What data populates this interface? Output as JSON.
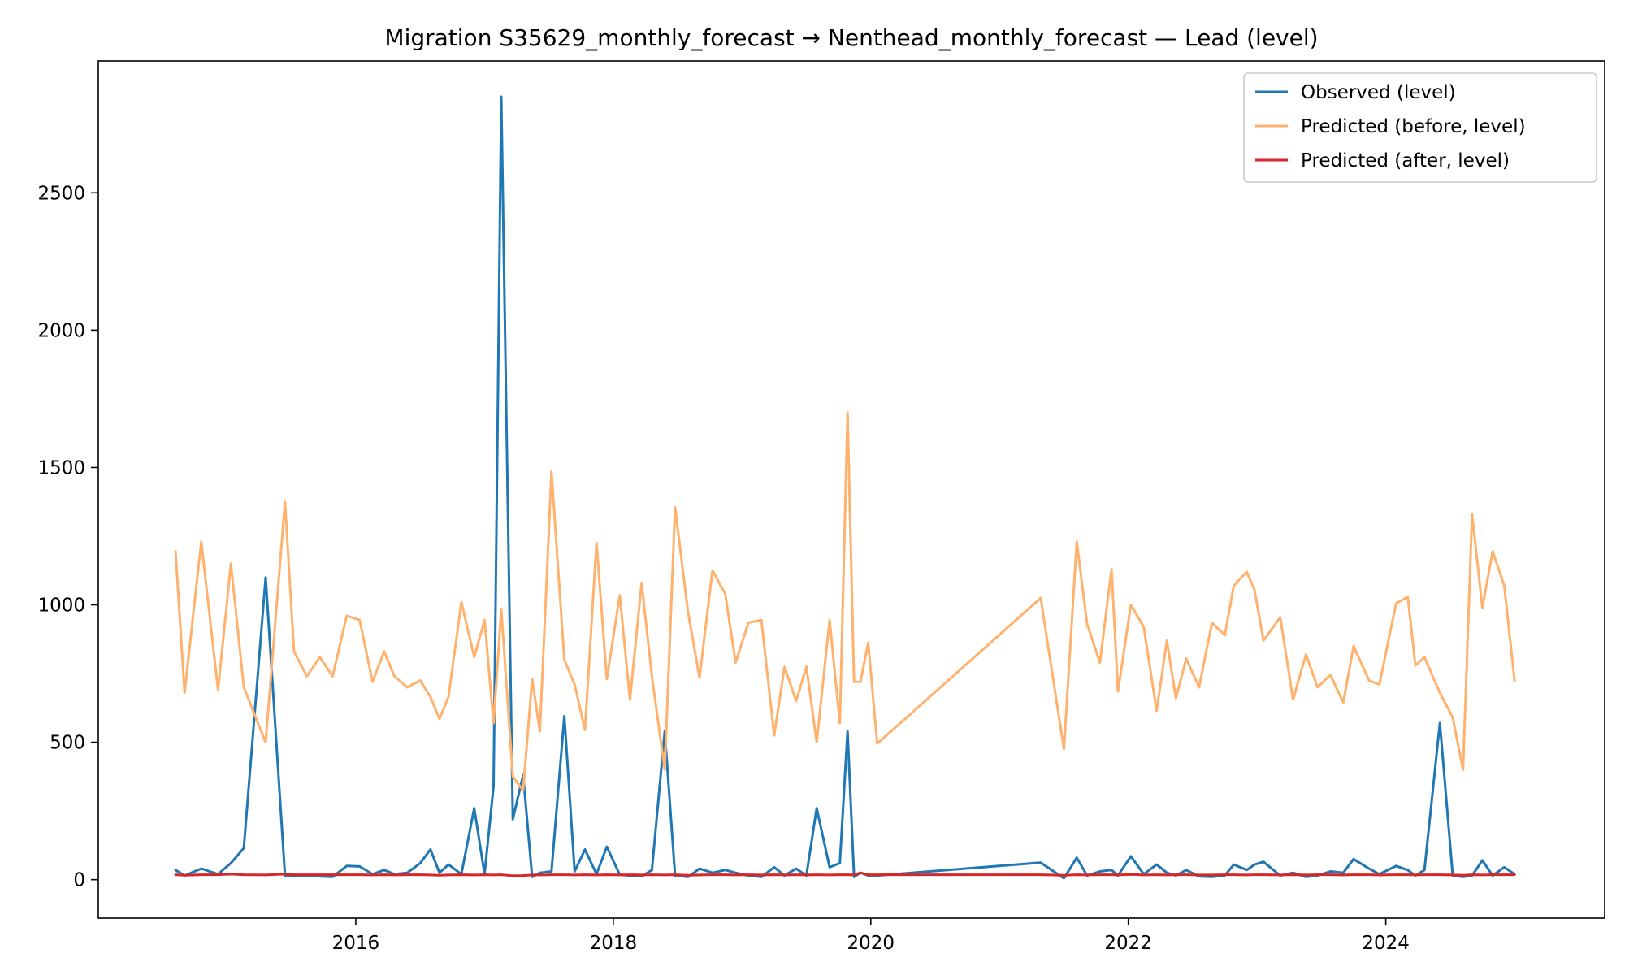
{
  "chart_data": {
    "type": "line",
    "title": "Migration S35629_monthly_forecast → Nenthead_monthly_forecast — Lead (level)",
    "xlabel": "",
    "ylabel": "",
    "x_ticks": [
      {
        "value": 2016,
        "label": "2016"
      },
      {
        "value": 2018,
        "label": "2018"
      },
      {
        "value": 2020,
        "label": "2020"
      },
      {
        "value": 2022,
        "label": "2022"
      },
      {
        "value": 2024,
        "label": "2024"
      }
    ],
    "y_ticks": [
      {
        "value": 0,
        "label": "0"
      },
      {
        "value": 500,
        "label": "500"
      },
      {
        "value": 1000,
        "label": "1000"
      },
      {
        "value": 1500,
        "label": "1500"
      },
      {
        "value": 2000,
        "label": "2000"
      },
      {
        "value": 2500,
        "label": "2500"
      }
    ],
    "xlim": [
      2014.0,
      2025.7
    ],
    "ylim": [
      -140,
      2980
    ],
    "grid": false,
    "legend_position": "top-right",
    "x": [
      2014.6,
      2014.67,
      2014.8,
      2014.93,
      2015.03,
      2015.13,
      2015.3,
      2015.45,
      2015.52,
      2015.62,
      2015.72,
      2015.82,
      2015.93,
      2016.03,
      2016.13,
      2016.22,
      2016.3,
      2016.4,
      2016.5,
      2016.58,
      2016.65,
      2016.72,
      2016.82,
      2016.92,
      2017.0,
      2017.07,
      2017.13,
      2017.22,
      2017.3,
      2017.37,
      2017.43,
      2017.52,
      2017.62,
      2017.7,
      2017.78,
      2017.87,
      2017.95,
      2018.05,
      2018.13,
      2018.22,
      2018.3,
      2018.4,
      2018.48,
      2018.58,
      2018.67,
      2018.77,
      2018.87,
      2018.95,
      2019.05,
      2019.15,
      2019.25,
      2019.33,
      2019.42,
      2019.5,
      2019.58,
      2019.68,
      2019.76,
      2019.82,
      2019.87,
      2019.92,
      2019.98,
      2020.05,
      2021.32,
      2021.5,
      2021.6,
      2021.68,
      2021.78,
      2021.87,
      2021.92,
      2022.02,
      2022.12,
      2022.22,
      2022.3,
      2022.37,
      2022.45,
      2022.55,
      2022.65,
      2022.75,
      2022.82,
      2022.92,
      2022.98,
      2023.05,
      2023.18,
      2023.28,
      2023.38,
      2023.47,
      2023.57,
      2023.67,
      2023.75,
      2023.87,
      2023.95,
      2024.08,
      2024.17,
      2024.23,
      2024.3,
      2024.42,
      2024.52,
      2024.6,
      2024.67,
      2024.75,
      2024.83,
      2024.92,
      2025.0
    ],
    "series": [
      {
        "name": "Observed (level)",
        "color": "#1f77b4",
        "values": [
          35,
          15,
          40,
          20,
          60,
          115,
          1100,
          15,
          12,
          15,
          12,
          10,
          50,
          48,
          20,
          35,
          20,
          25,
          60,
          110,
          25,
          55,
          20,
          260,
          20,
          340,
          2850,
          220,
          380,
          10,
          25,
          30,
          595,
          30,
          110,
          20,
          120,
          18,
          15,
          12,
          35,
          540,
          15,
          10,
          40,
          25,
          35,
          25,
          15,
          10,
          45,
          15,
          40,
          15,
          260,
          45,
          60,
          540,
          10,
          25,
          15,
          15,
          62,
          5,
          80,
          15,
          30,
          35,
          15,
          85,
          20,
          55,
          25,
          15,
          35,
          12,
          10,
          15,
          55,
          35,
          55,
          65,
          15,
          25,
          10,
          15,
          30,
          25,
          75,
          40,
          20,
          50,
          35,
          15,
          35,
          570,
          15,
          10,
          15,
          70,
          15,
          45,
          20
        ]
      },
      {
        "name": "Predicted (before, level)",
        "color": "#ffb26e",
        "values": [
          1195,
          680,
          1230,
          690,
          1150,
          700,
          500,
          1375,
          830,
          740,
          810,
          740,
          960,
          945,
          720,
          830,
          740,
          700,
          725,
          665,
          585,
          665,
          1010,
          810,
          945,
          570,
          985,
          375,
          325,
          730,
          540,
          1485,
          800,
          710,
          545,
          1225,
          730,
          1035,
          655,
          1080,
          740,
          400,
          1355,
          975,
          735,
          1125,
          1040,
          790,
          935,
          945,
          525,
          775,
          650,
          775,
          500,
          945,
          570,
          1700,
          720,
          720,
          862,
          495,
          1025,
          475,
          1230,
          930,
          790,
          1130,
          685,
          1000,
          920,
          615,
          870,
          660,
          805,
          700,
          935,
          890,
          1070,
          1120,
          1055,
          870,
          955,
          655,
          820,
          700,
          745,
          645,
          850,
          725,
          710,
          1005,
          1030,
          780,
          810,
          680,
          590,
          400,
          1330,
          990,
          1195,
          1070,
          725
        ]
      },
      {
        "name": "Predicted (after, level)",
        "color": "#d62728",
        "values": [
          18,
          16,
          18,
          18,
          20,
          18,
          17,
          20,
          18,
          18,
          18,
          18,
          18,
          18,
          17,
          18,
          17,
          18,
          18,
          17,
          16,
          17,
          18,
          17,
          18,
          17,
          18,
          14,
          15,
          17,
          17,
          18,
          18,
          17,
          18,
          17,
          18,
          17,
          18,
          17,
          18,
          17,
          18,
          16,
          17,
          18,
          18,
          17,
          18,
          17,
          18,
          17,
          18,
          17,
          18,
          17,
          18,
          18,
          17,
          25,
          18,
          18,
          18,
          16,
          18,
          17,
          18,
          18,
          17,
          19,
          17,
          18,
          17,
          18,
          18,
          17,
          17,
          18,
          18,
          17,
          18,
          18,
          17,
          18,
          17,
          18,
          18,
          17,
          18,
          18,
          17,
          18,
          18,
          17,
          18,
          18,
          17,
          16,
          18,
          17,
          18,
          18,
          18
        ]
      }
    ]
  }
}
